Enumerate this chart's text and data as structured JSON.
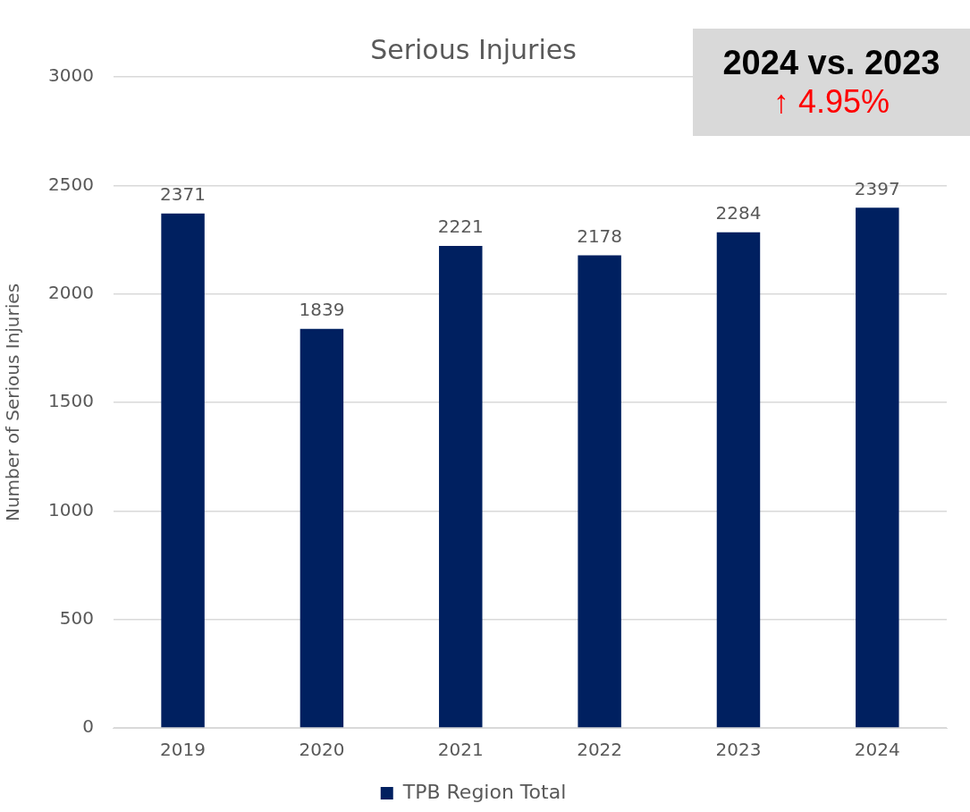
{
  "chart_data": {
    "type": "bar",
    "title": "Serious Injuries",
    "ylabel": "Number of Serious Injuries",
    "categories": [
      "2019",
      "2020",
      "2021",
      "2022",
      "2023",
      "2024"
    ],
    "series": [
      {
        "name": "TPB Region Total",
        "color": "#002060",
        "values": [
          2371,
          1839,
          2221,
          2178,
          2284,
          2397
        ]
      }
    ],
    "ylim": [
      0,
      3000
    ],
    "yticks": [
      0,
      500,
      1000,
      1500,
      2000,
      2500,
      3000
    ],
    "grid": "y",
    "legend": "bottom",
    "data_labels": true,
    "annotations": [
      "2024 vs. 2023",
      "↑ 4.95%"
    ]
  }
}
